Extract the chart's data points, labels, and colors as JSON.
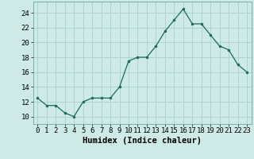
{
  "x": [
    0,
    1,
    2,
    3,
    4,
    5,
    6,
    7,
    8,
    9,
    10,
    11,
    12,
    13,
    14,
    15,
    16,
    17,
    18,
    19,
    20,
    21,
    22,
    23
  ],
  "y": [
    12.5,
    11.5,
    11.5,
    10.5,
    10.0,
    12.0,
    12.5,
    12.5,
    12.5,
    14.0,
    17.5,
    18.0,
    18.0,
    19.5,
    21.5,
    23.0,
    24.5,
    22.5,
    22.5,
    21.0,
    19.5,
    19.0,
    17.0,
    16.0
  ],
  "line_color": "#1a6b5a",
  "marker_color": "#1a6b5a",
  "bg_color": "#ceeae6",
  "grid_color": "#aacfcb",
  "xlabel": "Humidex (Indice chaleur)",
  "xlim": [
    -0.5,
    23.5
  ],
  "ylim": [
    9.0,
    25.5
  ],
  "yticks": [
    10,
    12,
    14,
    16,
    18,
    20,
    22,
    24
  ],
  "xticks": [
    0,
    1,
    2,
    3,
    4,
    5,
    6,
    7,
    8,
    9,
    10,
    11,
    12,
    13,
    14,
    15,
    16,
    17,
    18,
    19,
    20,
    21,
    22,
    23
  ],
  "tick_fontsize": 6.5,
  "label_fontsize": 7.5
}
